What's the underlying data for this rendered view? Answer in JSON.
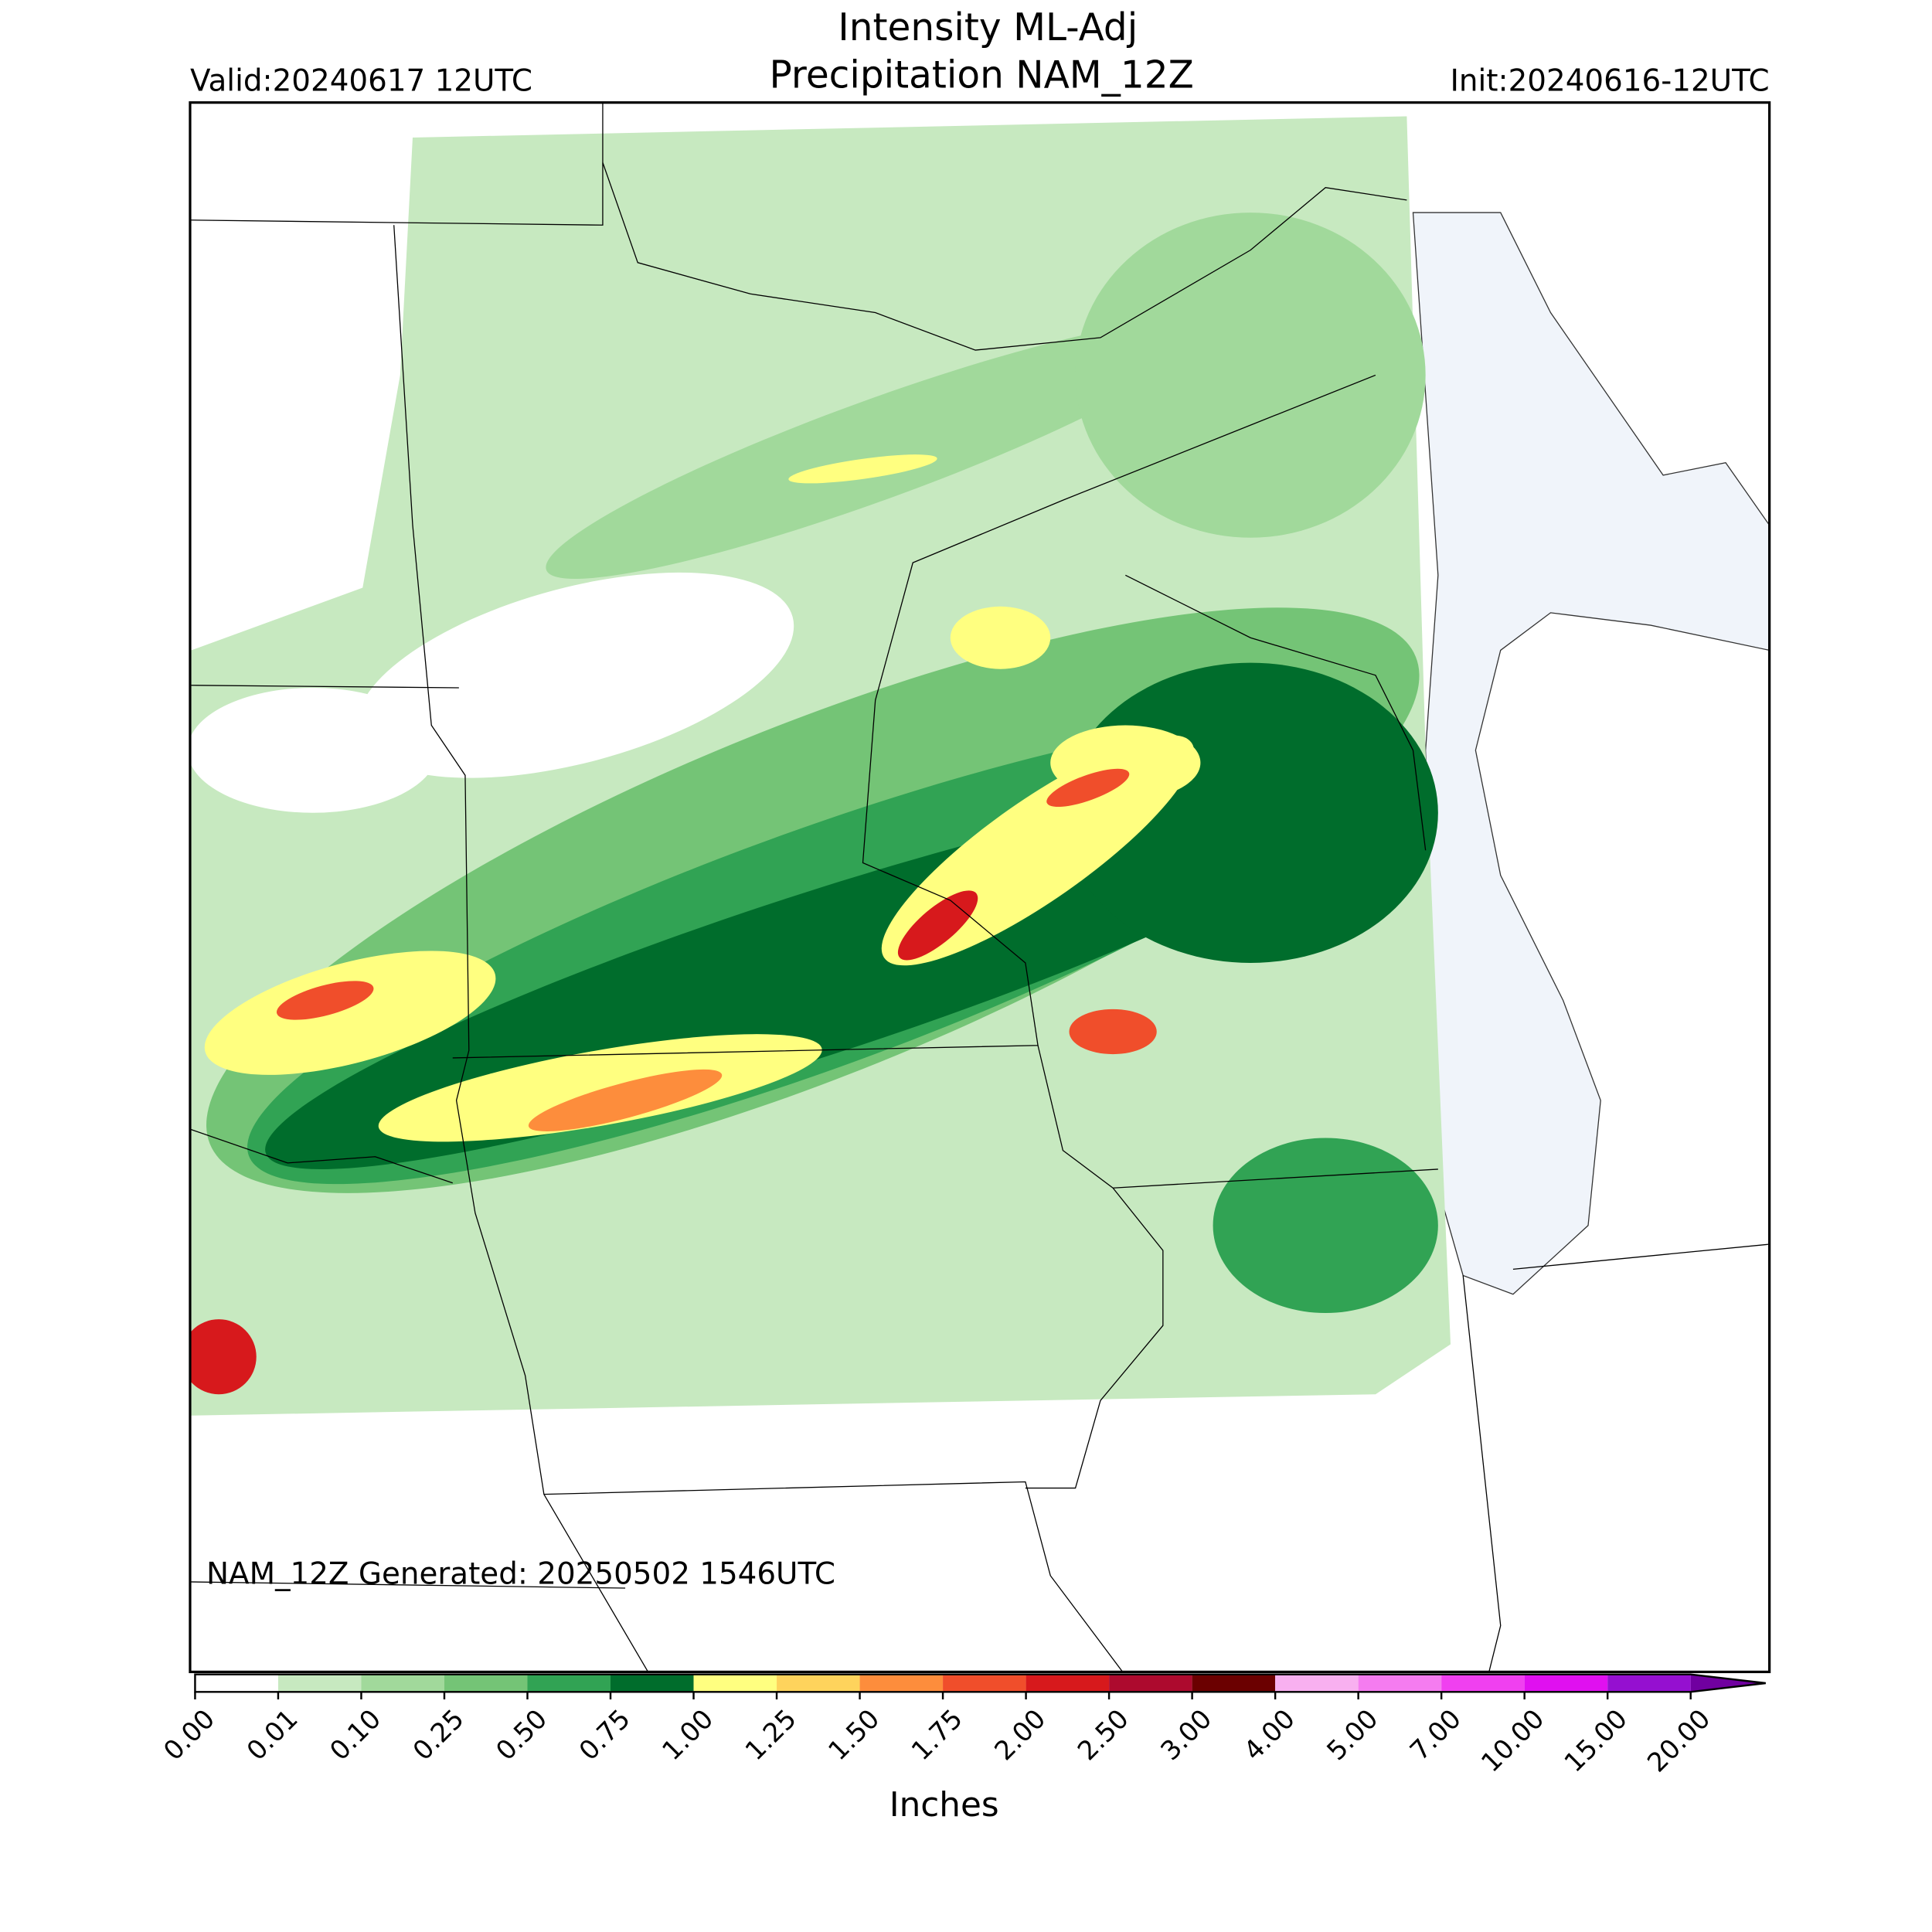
{
  "header": {
    "title": "Intensity ML-Adj",
    "subtitle": "Precipitation NAM_12Z",
    "valid": "Valid:20240617 12UTC",
    "init": "Init:20240616-12UTC"
  },
  "note": "NAM_12Z Generated: 20250502 1546UTC",
  "colorbar": {
    "label": "Inches",
    "ticks": [
      {
        "value": 0,
        "label": "0.00"
      },
      {
        "value": 0.01,
        "label": "0.01"
      },
      {
        "value": 0.1,
        "label": "0.10"
      },
      {
        "value": 0.25,
        "label": "0.25"
      },
      {
        "value": 0.5,
        "label": "0.50"
      },
      {
        "value": 0.75,
        "label": "0.75"
      },
      {
        "value": 1,
        "label": "1.00"
      },
      {
        "value": 1.25,
        "label": "1.25"
      },
      {
        "value": 1.5,
        "label": "1.50"
      },
      {
        "value": 1.75,
        "label": "1.75"
      },
      {
        "value": 2,
        "label": "2.00"
      },
      {
        "value": 2.5,
        "label": "2.50"
      },
      {
        "value": 3,
        "label": "3.00"
      },
      {
        "value": 4,
        "label": "4.00"
      },
      {
        "value": 5,
        "label": "5.00"
      },
      {
        "value": 7,
        "label": "7.00"
      },
      {
        "value": 10,
        "label": "10.00"
      },
      {
        "value": 15,
        "label": "15.00"
      },
      {
        "value": 20,
        "label": "20.00"
      }
    ],
    "colors": [
      "#ffffff",
      "#c7e9c0",
      "#a1d99b",
      "#74c476",
      "#31a354",
      "#006d2c",
      "#ffff80",
      "#fed35c",
      "#fd8d3c",
      "#f04e2b",
      "#d7191c",
      "#ad0a2e",
      "#6b0000",
      "#f8b0f0",
      "#f57cf0",
      "#f040f0",
      "#e010f0",
      "#9510d0",
      "#7000a0"
    ]
  }
}
